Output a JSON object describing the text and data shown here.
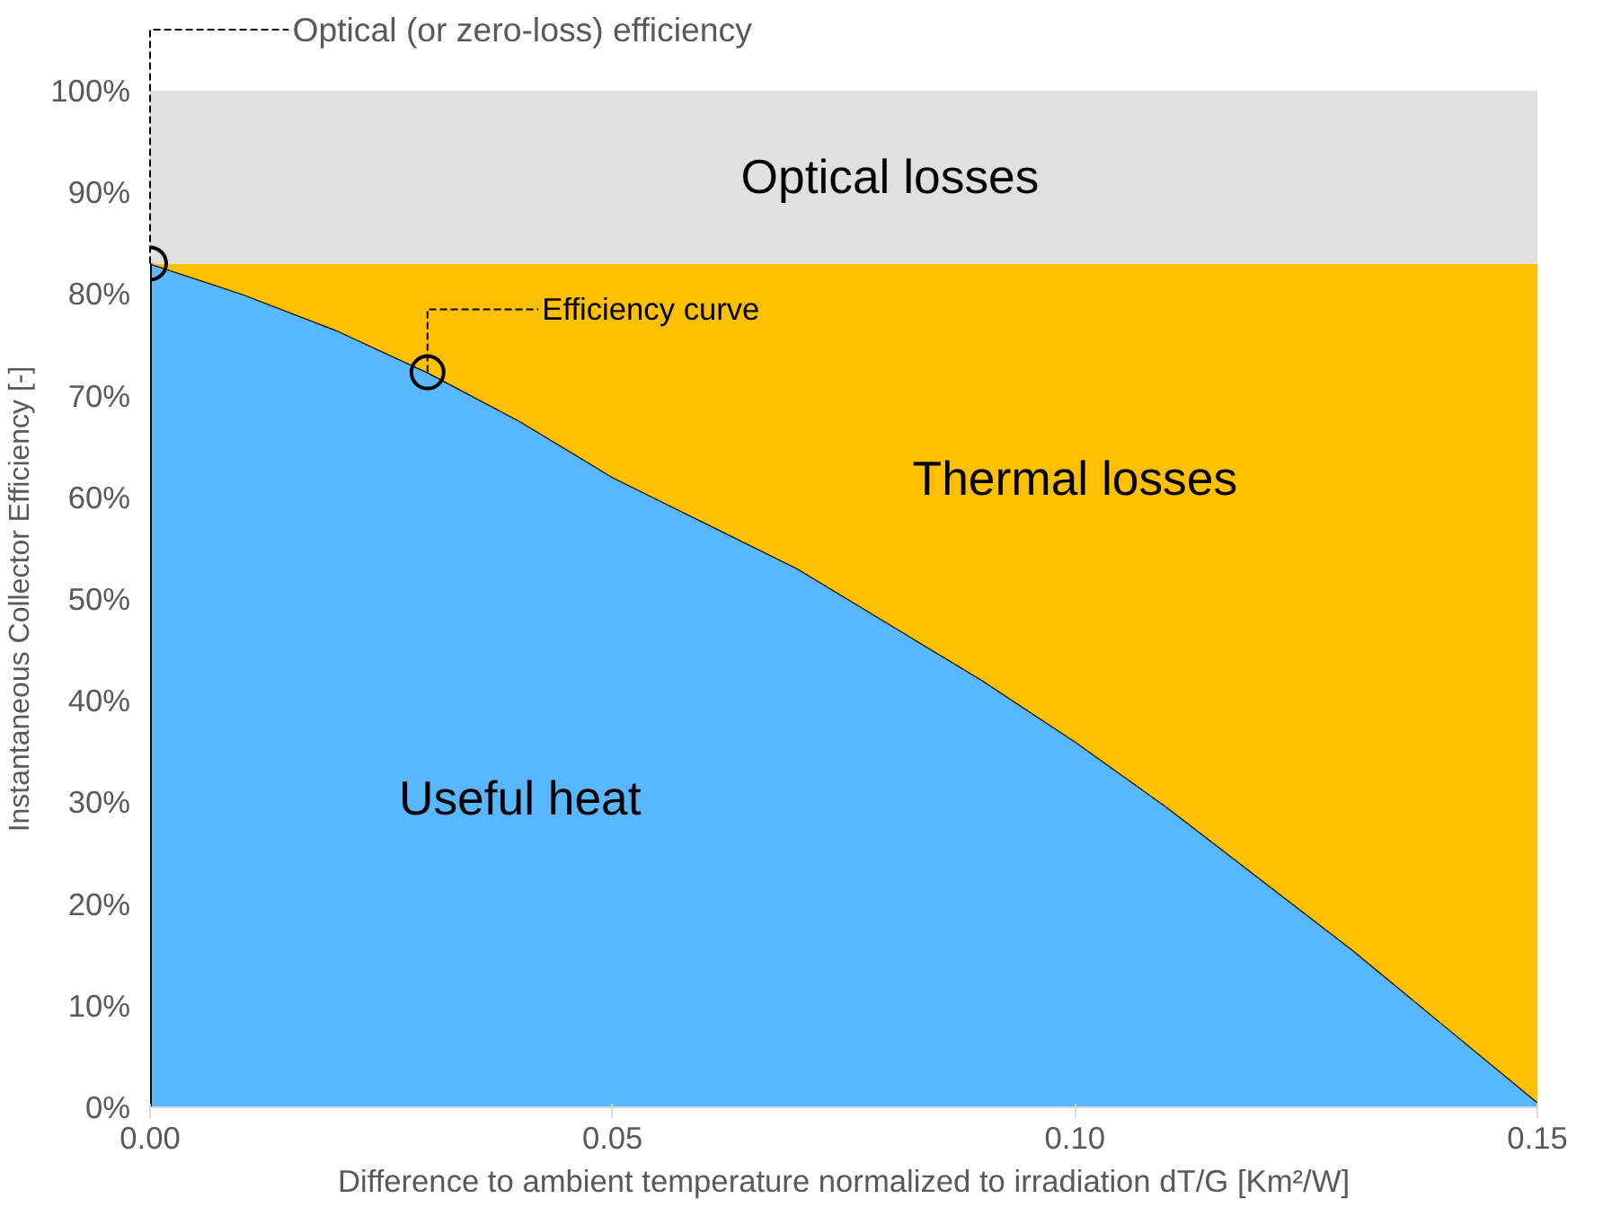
{
  "chart_data": {
    "type": "area",
    "stacked": true,
    "xlabel": "Difference to ambient temperature normalized to irradiation dT/G [Km²/W]",
    "ylabel": "Instantaneous Collector Efficiency [-]",
    "x": [
      0,
      0.01,
      0.02,
      0.03,
      0.04,
      0.05,
      0.06,
      0.07,
      0.08,
      0.09,
      0.1,
      0.11,
      0.12,
      0.13,
      0.14,
      0.15
    ],
    "series": [
      {
        "name": "Useful heat",
        "color": "#59b7ff",
        "values": [
          83,
          80,
          76.5,
          72.3,
          67.5,
          62,
          57.5,
          53,
          47.5,
          42,
          36,
          29.5,
          22.5,
          15.5,
          8,
          0.5
        ]
      },
      {
        "name": "Thermal losses",
        "color": "#ffc000",
        "values": [
          0,
          3,
          6.5,
          10.7,
          15.5,
          21,
          25.5,
          30,
          35.5,
          41,
          47,
          53.5,
          60.5,
          67.5,
          75,
          82.5
        ]
      },
      {
        "name": "Optical losses",
        "color": "#e0e0e0",
        "values": [
          17,
          17,
          17,
          17,
          17,
          17,
          17,
          17,
          17,
          17,
          17,
          17,
          17,
          17,
          17,
          17
        ]
      }
    ],
    "xlim": [
      0,
      0.15
    ],
    "ylim": [
      0,
      100
    ],
    "xticks": [
      {
        "value": 0,
        "label": "0.00"
      },
      {
        "value": 0.05,
        "label": "0.05"
      },
      {
        "value": 0.1,
        "label": "0.10"
      },
      {
        "value": 0.15,
        "label": "0.15"
      }
    ],
    "yticks": [
      {
        "value": 0,
        "label": "0%"
      },
      {
        "value": 10,
        "label": "10%"
      },
      {
        "value": 20,
        "label": "20%"
      },
      {
        "value": 30,
        "label": "30%"
      },
      {
        "value": 40,
        "label": "40%"
      },
      {
        "value": 50,
        "label": "50%"
      },
      {
        "value": 60,
        "label": "60%"
      },
      {
        "value": 70,
        "label": "70%"
      },
      {
        "value": 80,
        "label": "80%"
      },
      {
        "value": 90,
        "label": "90%"
      },
      {
        "value": 100,
        "label": "100%"
      }
    ],
    "annotations": [
      {
        "text": "Optical (or zero-loss) efficiency",
        "x": 0,
        "y": 83
      },
      {
        "text": "Efficiency curve",
        "x": 0.03,
        "y": 72.3
      }
    ]
  }
}
